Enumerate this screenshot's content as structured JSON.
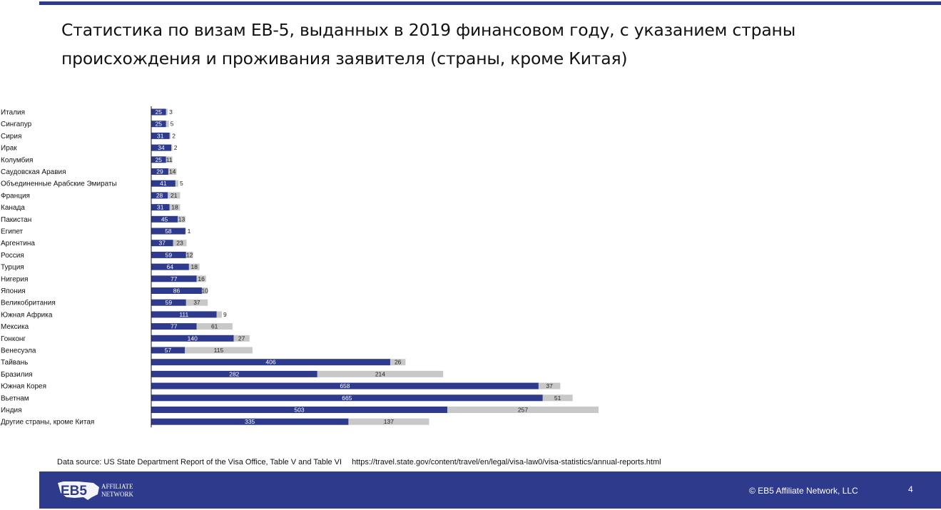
{
  "title": "Статистика по визам EB-5, выданных в 2019 финансовом году, с указанием страны происхождения и проживания заявителя (страны, кроме Китая)",
  "source": {
    "label": "Data source: US State Department Report of the Visa Office, Table V and Table VI",
    "url": "https://travel.state.gov/content/travel/en/legal/visa-law0/visa-statistics/annual-reports.html"
  },
  "footer": {
    "logo_main": "EB5",
    "logo_line1": "AFFILIATE",
    "logo_line2": "NETWORK",
    "copyright": "© EB5 Affiliate Network, LLC",
    "page_number": "4"
  },
  "colors": {
    "series1": "#2e3a8c",
    "series2": "#c8c8c8",
    "footer": "#2e3a8c"
  },
  "chart_data": {
    "type": "bar",
    "orientation": "horizontal",
    "stacked": true,
    "categories": [
      "Италия",
      "Сингапур",
      "Сирия",
      "Ирак",
      "Колумбия",
      "Саудовская Аравия",
      "Объединенные Арабские Эмираты",
      "Франция",
      "Канада",
      "Пакистан",
      "Египет",
      "Аргентина",
      "Россия",
      "Турция",
      "Нигерия",
      "Япония",
      "Великобритания",
      "Южная Африка",
      "Мексика",
      "Гонконг",
      "Венесуэла",
      "Тайвань",
      "Бразилия",
      "Южная Корея",
      "Вьетнам",
      "Индия",
      "Другие страны, кроме Китая"
    ],
    "series": [
      {
        "values": [
          25,
          25,
          31,
          34,
          25,
          29,
          41,
          28,
          31,
          45,
          58,
          37,
          59,
          64,
          77,
          86,
          59,
          111,
          77,
          140,
          57,
          406,
          282,
          658,
          665,
          503,
          335
        ]
      },
      {
        "values": [
          3,
          5,
          2,
          2,
          11,
          14,
          5,
          21,
          18,
          13,
          1,
          23,
          12,
          18,
          16,
          10,
          37,
          9,
          61,
          27,
          115,
          26,
          214,
          37,
          51,
          257,
          137
        ]
      }
    ],
    "legend": "none",
    "grid": false,
    "data_labels": true
  }
}
